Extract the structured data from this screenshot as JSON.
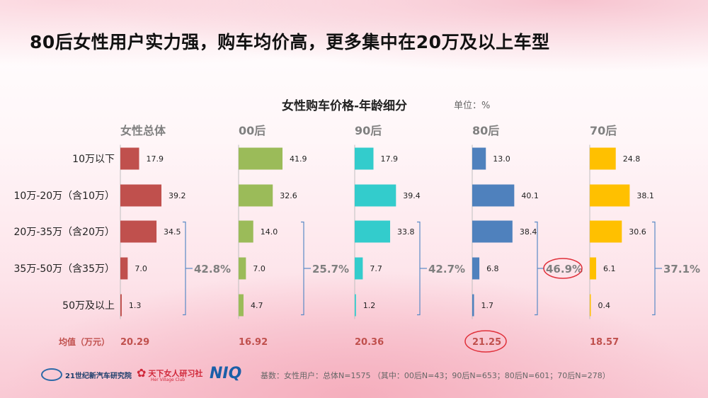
{
  "title": "80后女性用户实力强，购车均价高，更多集中在20万及以上车型",
  "chart_heading": "女性购车价格-年龄细分",
  "unit_label": "单位：%",
  "footer_note": "基数：女性用户：总体N=1575 （其中：00后N=43；90后N=653；80后N=601；70后N=278）",
  "logos": {
    "org1": "21世纪新汽车研究院",
    "org2": "天下女人研习社",
    "org2_sub": "Her Village Club",
    "org3": "NIQ"
  },
  "chart_data": {
    "type": "bar",
    "orientation": "horizontal",
    "categories": [
      "10万以下",
      "10万-20万（含10万）",
      "20万-35万（含20万）",
      "35万-50万（含35万）",
      "50万及以上"
    ],
    "series": [
      {
        "name": "女性总体",
        "values": [
          17.9,
          39.2,
          34.5,
          7.0,
          1.3
        ],
        "color": "#c0504d",
        "bracket_label": "42.8%",
        "mean": "20.29",
        "highlight_bracket": false,
        "highlight_mean": false
      },
      {
        "name": "00后",
        "values": [
          41.9,
          32.6,
          14.0,
          7.0,
          4.7
        ],
        "color": "#9bbb59",
        "bracket_label": "25.7%",
        "mean": "16.92",
        "highlight_bracket": false,
        "highlight_mean": false
      },
      {
        "name": "90后",
        "values": [
          17.9,
          39.4,
          33.8,
          7.7,
          1.2
        ],
        "color": "#33cccc",
        "bracket_label": "42.7%",
        "mean": "20.36",
        "highlight_bracket": false,
        "highlight_mean": false
      },
      {
        "name": "80后",
        "values": [
          13.0,
          40.1,
          38.4,
          6.8,
          1.7
        ],
        "color": "#4f81bd",
        "bracket_label": "46.9%",
        "mean": "21.25",
        "highlight_bracket": true,
        "highlight_mean": true
      },
      {
        "name": "70后",
        "values": [
          24.8,
          38.1,
          30.6,
          6.1,
          0.4
        ],
        "color": "#ffc000",
        "bracket_label": "37.1%",
        "mean": "18.57",
        "highlight_bracket": false,
        "highlight_mean": false
      }
    ],
    "mean_row_label": "均值（万元）",
    "colors": {
      "header": "#808080",
      "bracket": "#5a8ac6",
      "mean": "#c0504d",
      "highlight": "#e0303a"
    }
  }
}
